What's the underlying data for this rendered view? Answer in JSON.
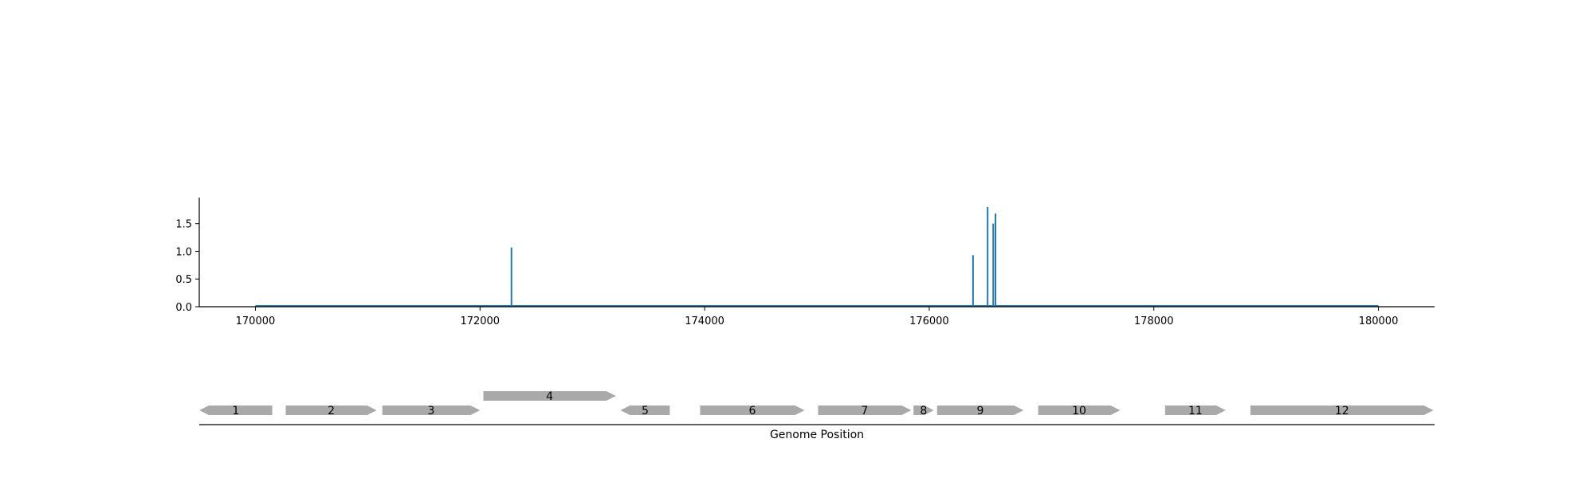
{
  "chart_data": [
    {
      "type": "line",
      "title": "",
      "xlabel": "",
      "ylabel": "",
      "xlim": [
        169500,
        180500
      ],
      "ylim": [
        0,
        1.97
      ],
      "x_ticks": [
        {
          "value": 170000,
          "label": "170000"
        },
        {
          "value": 172000,
          "label": "172000"
        },
        {
          "value": 174000,
          "label": "174000"
        },
        {
          "value": 176000,
          "label": "176000"
        },
        {
          "value": 178000,
          "label": "178000"
        },
        {
          "value": 180000,
          "label": "180000"
        }
      ],
      "y_ticks": [
        {
          "value": 0.0,
          "label": "0.0"
        },
        {
          "value": 0.5,
          "label": "0.5"
        },
        {
          "value": 1.0,
          "label": "1.0"
        },
        {
          "value": 1.5,
          "label": "1.5"
        }
      ],
      "grid": false,
      "series": [
        {
          "color": "#1f77b4",
          "baseline": [
            170000,
            180000
          ],
          "spikes": [
            {
              "x": 172280,
              "y": 1.07
            },
            {
              "x": 176390,
              "y": 0.93
            },
            {
              "x": 176520,
              "y": 1.8
            },
            {
              "x": 176570,
              "y": 1.5
            },
            {
              "x": 176590,
              "y": 1.68
            }
          ]
        }
      ]
    },
    {
      "type": "gene-track",
      "xlabel": "Genome Position",
      "xlim": [
        169500,
        180500
      ],
      "feature_color": "#a9a9a9",
      "features": [
        {
          "label": "1",
          "start": 169500,
          "end": 170150,
          "strand": -1,
          "row": 0
        },
        {
          "label": "2",
          "start": 170270,
          "end": 171080,
          "strand": 1,
          "row": 0
        },
        {
          "label": "3",
          "start": 171130,
          "end": 172000,
          "strand": 1,
          "row": 0
        },
        {
          "label": "4",
          "start": 172030,
          "end": 173210,
          "strand": 1,
          "row": 1
        },
        {
          "label": "5",
          "start": 173250,
          "end": 173690,
          "strand": -1,
          "row": 0
        },
        {
          "label": "6",
          "start": 173960,
          "end": 174890,
          "strand": 1,
          "row": 0
        },
        {
          "label": "7",
          "start": 175010,
          "end": 175840,
          "strand": 1,
          "row": 0
        },
        {
          "label": "8",
          "start": 175860,
          "end": 176040,
          "strand": 1,
          "row": 0
        },
        {
          "label": "9",
          "start": 176070,
          "end": 176840,
          "strand": 1,
          "row": 0
        },
        {
          "label": "10",
          "start": 176970,
          "end": 177700,
          "strand": 1,
          "row": 0
        },
        {
          "label": "11",
          "start": 178100,
          "end": 178640,
          "strand": 1,
          "row": 0
        },
        {
          "label": "12",
          "start": 178860,
          "end": 180490,
          "strand": 1,
          "row": 0
        }
      ]
    }
  ]
}
